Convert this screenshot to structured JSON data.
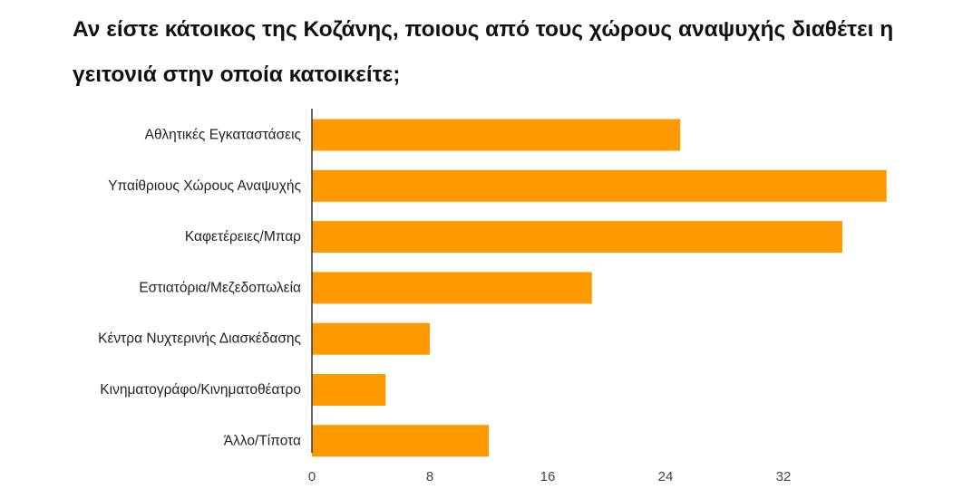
{
  "chart_data": {
    "type": "bar",
    "orientation": "horizontal",
    "title": "Αν είστε κάτοικος της Κοζάνης, ποιους από τους χώρους αναψυχής διαθέτει η γειτονιά στην οποία κατοικείτε;",
    "categories": [
      "Αθλητικές Εγκαταστάσεις",
      "Υπαίθριους Χώρους Αναψυχής",
      "Καφετέρειες/Μπαρ",
      "Εστιατόρια/Μεζεδοπωλεία",
      "Κέντρα Νυχτερινής Διασκέδασης",
      "Κινηματογράφο/Κινηματοθέατρο",
      "Άλλο/Τίποτα"
    ],
    "values": [
      25,
      39,
      36,
      19,
      8,
      5,
      12
    ],
    "xlim": [
      0,
      40
    ],
    "xticks": [
      0,
      8,
      16,
      24,
      32
    ],
    "grid": false,
    "bar_color": "#ff9900",
    "axis_color": "#333333"
  }
}
